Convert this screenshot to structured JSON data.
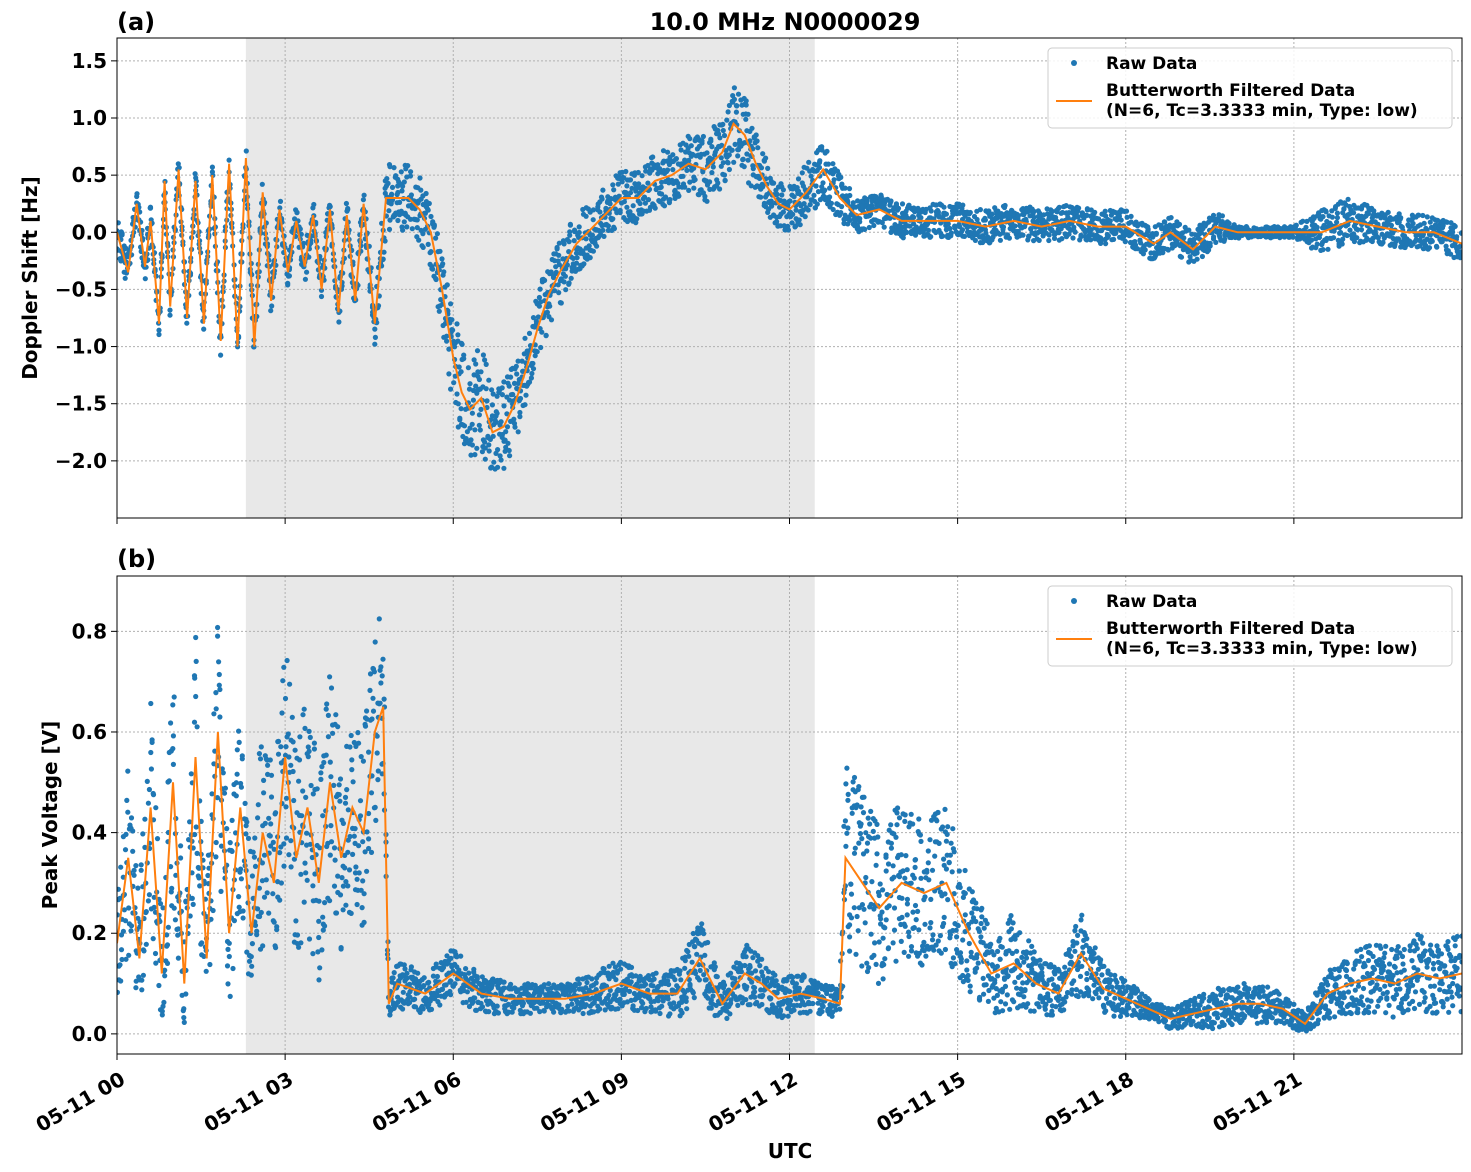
{
  "figure": {
    "title": "10.0 MHz N0000029",
    "xlabel": "UTC",
    "colors": {
      "raw": "#1f77b4",
      "filtered": "#ff7f0e",
      "shade": "#e8e8e8",
      "grid": "#b0b0b0"
    }
  },
  "chart_data": [
    {
      "type": "scatter",
      "panel_label": "(a)",
      "ylabel": "Doppler Shift [Hz]",
      "xlim_hours": [
        0,
        24
      ],
      "ylim": [
        -2.5,
        1.7
      ],
      "y_ticks": [
        1.5,
        1.0,
        0.5,
        0.0,
        -0.5,
        -1.0,
        -1.5,
        -2.0
      ],
      "y_tick_labels": [
        "1.5",
        "1.0",
        "0.5",
        "0.0",
        "−0.5",
        "−1.0",
        "−1.5",
        "−2.0"
      ],
      "x_tick_hours": [
        0,
        3,
        6,
        9,
        12,
        15,
        18,
        21
      ],
      "x_tick_labels": [],
      "shaded_span_hours": [
        2.3,
        12.45
      ],
      "grid": true,
      "legend_position": "top-right",
      "legend": [
        "Raw Data",
        "Butterworth Filtered Data",
        "(N=6, Tc=3.3333 min, Type: low)"
      ],
      "series": [
        {
          "name": "Butterworth Filtered Data",
          "kind": "line",
          "x": [
            0,
            0.2,
            0.35,
            0.5,
            0.6,
            0.75,
            0.85,
            0.95,
            1.1,
            1.25,
            1.4,
            1.55,
            1.7,
            1.85,
            2.0,
            2.15,
            2.3,
            2.45,
            2.6,
            2.75,
            2.9,
            3.05,
            3.2,
            3.35,
            3.5,
            3.65,
            3.8,
            3.95,
            4.1,
            4.25,
            4.4,
            4.6,
            4.8,
            5.0,
            5.2,
            5.4,
            5.6,
            5.8,
            6.0,
            6.15,
            6.3,
            6.5,
            6.7,
            6.9,
            7.1,
            7.3,
            7.5,
            7.7,
            7.9,
            8.2,
            8.5,
            8.8,
            9.0,
            9.3,
            9.6,
            9.9,
            10.2,
            10.5,
            10.8,
            11.0,
            11.2,
            11.4,
            11.6,
            11.8,
            12.0,
            12.3,
            12.6,
            12.9,
            13.2,
            13.6,
            14.0,
            14.5,
            15.0,
            15.5,
            16.0,
            16.5,
            17.0,
            17.5,
            18.0,
            18.5,
            18.8,
            19.2,
            19.6,
            20.0,
            20.5,
            21.0,
            21.5,
            22.0,
            22.5,
            23.0,
            23.5,
            24.0
          ],
          "y": [
            0.0,
            -0.35,
            0.25,
            -0.3,
            0.1,
            -0.8,
            0.45,
            -0.65,
            0.55,
            -0.75,
            0.45,
            -0.8,
            0.5,
            -0.95,
            0.6,
            -1.0,
            0.65,
            -1.0,
            0.35,
            -0.6,
            0.2,
            -0.35,
            0.1,
            -0.3,
            0.15,
            -0.5,
            0.2,
            -0.7,
            0.15,
            -0.6,
            0.25,
            -0.8,
            0.3,
            0.3,
            0.3,
            0.2,
            0.0,
            -0.5,
            -1.1,
            -1.4,
            -1.55,
            -1.45,
            -1.75,
            -1.7,
            -1.5,
            -1.2,
            -0.85,
            -0.55,
            -0.35,
            -0.1,
            0.05,
            0.2,
            0.3,
            0.3,
            0.45,
            0.5,
            0.6,
            0.55,
            0.7,
            0.95,
            0.85,
            0.6,
            0.4,
            0.25,
            0.2,
            0.35,
            0.55,
            0.3,
            0.15,
            0.2,
            0.1,
            0.1,
            0.1,
            0.05,
            0.1,
            0.05,
            0.1,
            0.05,
            0.05,
            -0.1,
            0.0,
            -0.15,
            0.05,
            0.0,
            0.0,
            0.0,
            0.0,
            0.1,
            0.05,
            0.0,
            0.0,
            -0.1
          ]
        },
        {
          "name": "Raw Data",
          "kind": "scatter",
          "x": [
            0,
            0.2,
            0.35,
            0.5,
            0.6,
            0.75,
            0.85,
            0.95,
            1.1,
            1.25,
            1.4,
            1.55,
            1.7,
            1.85,
            2.0,
            2.15,
            2.3,
            2.45,
            2.6,
            2.75,
            2.9,
            3.05,
            3.2,
            3.35,
            3.5,
            3.65,
            3.8,
            3.95,
            4.1,
            4.25,
            4.4,
            4.6,
            4.8,
            5.0,
            5.2,
            5.4,
            5.6,
            5.8,
            6.0,
            6.15,
            6.3,
            6.5,
            6.7,
            6.9,
            7.1,
            7.3,
            7.5,
            7.7,
            7.9,
            8.2,
            8.5,
            8.8,
            9.0,
            9.3,
            9.6,
            9.9,
            10.2,
            10.5,
            10.8,
            11.0,
            11.2,
            11.4,
            11.6,
            11.8,
            12.0,
            12.3,
            12.6,
            12.9,
            13.2,
            13.6,
            14.0,
            14.5,
            15.0,
            15.5,
            16.0,
            16.5,
            17.0,
            17.5,
            18.0,
            18.5,
            18.8,
            19.2,
            19.6,
            20.0,
            20.5,
            21.0,
            21.5,
            22.0,
            22.5,
            23.0,
            23.5,
            24.0
          ],
          "y": [
            0.0,
            -0.35,
            0.25,
            -0.3,
            0.1,
            -0.8,
            0.45,
            -0.65,
            0.55,
            -0.75,
            0.45,
            -0.8,
            0.5,
            -0.95,
            0.6,
            -1.0,
            0.65,
            -1.0,
            0.35,
            -0.6,
            0.2,
            -0.35,
            0.1,
            -0.3,
            0.15,
            -0.5,
            0.2,
            -0.7,
            0.15,
            -0.6,
            0.25,
            -0.8,
            0.3,
            0.3,
            0.3,
            0.2,
            0.0,
            -0.5,
            -1.1,
            -1.4,
            -1.55,
            -1.45,
            -1.75,
            -1.7,
            -1.5,
            -1.2,
            -0.85,
            -0.55,
            -0.35,
            -0.1,
            0.05,
            0.2,
            0.3,
            0.3,
            0.45,
            0.5,
            0.6,
            0.55,
            0.7,
            0.95,
            0.85,
            0.6,
            0.4,
            0.25,
            0.2,
            0.35,
            0.55,
            0.3,
            0.15,
            0.2,
            0.1,
            0.1,
            0.1,
            0.05,
            0.1,
            0.05,
            0.1,
            0.05,
            0.05,
            -0.1,
            0.0,
            -0.15,
            0.05,
            0.0,
            0.0,
            0.0,
            0.0,
            0.1,
            0.05,
            0.0,
            0.0,
            -0.1
          ],
          "spread_hz": [
            0.15,
            0.15,
            0.15,
            0.15,
            0.15,
            0.15,
            0.15,
            0.15,
            0.15,
            0.15,
            0.15,
            0.15,
            0.15,
            0.15,
            0.15,
            0.15,
            0.15,
            0.15,
            0.15,
            0.15,
            0.15,
            0.15,
            0.15,
            0.15,
            0.15,
            0.15,
            0.15,
            0.15,
            0.15,
            0.15,
            0.15,
            0.2,
            0.3,
            0.3,
            0.3,
            0.3,
            0.3,
            0.35,
            0.45,
            0.45,
            0.45,
            0.45,
            0.4,
            0.4,
            0.35,
            0.3,
            0.3,
            0.3,
            0.3,
            0.25,
            0.25,
            0.25,
            0.25,
            0.25,
            0.25,
            0.25,
            0.25,
            0.3,
            0.3,
            0.35,
            0.35,
            0.3,
            0.25,
            0.2,
            0.2,
            0.25,
            0.25,
            0.2,
            0.15,
            0.15,
            0.15,
            0.15,
            0.15,
            0.15,
            0.15,
            0.15,
            0.15,
            0.15,
            0.15,
            0.15,
            0.15,
            0.15,
            0.15,
            0.05,
            0.05,
            0.05,
            0.2,
            0.2,
            0.15,
            0.15,
            0.15,
            0.15
          ]
        }
      ]
    },
    {
      "type": "scatter",
      "panel_label": "(b)",
      "ylabel": "Peak Voltage [V]",
      "xlim_hours": [
        0,
        24
      ],
      "ylim": [
        -0.04,
        0.91
      ],
      "y_ticks": [
        0.8,
        0.6,
        0.4,
        0.2,
        0.0
      ],
      "y_tick_labels": [
        "0.8",
        "0.6",
        "0.4",
        "0.2",
        "0.0"
      ],
      "x_tick_hours": [
        0,
        3,
        6,
        9,
        12,
        15,
        18,
        21
      ],
      "x_tick_labels": [
        "05-11 00",
        "05-11 03",
        "05-11 06",
        "05-11 09",
        "05-11 12",
        "05-11 15",
        "05-11 18",
        "05-11 21"
      ],
      "shaded_span_hours": [
        2.3,
        12.45
      ],
      "grid": true,
      "legend_position": "top-right",
      "legend": [
        "Raw Data",
        "Butterworth Filtered Data",
        "(N=6, Tc=3.3333 min, Type: low)"
      ],
      "series": [
        {
          "name": "Butterworth Filtered Data",
          "kind": "line",
          "x": [
            0,
            0.2,
            0.4,
            0.6,
            0.8,
            1.0,
            1.2,
            1.4,
            1.6,
            1.8,
            2.0,
            2.2,
            2.4,
            2.6,
            2.8,
            3.0,
            3.2,
            3.4,
            3.6,
            3.8,
            4.0,
            4.2,
            4.4,
            4.6,
            4.75,
            4.85,
            5.0,
            5.5,
            6.0,
            6.5,
            7.0,
            7.5,
            8.0,
            8.5,
            9.0,
            9.5,
            10.0,
            10.4,
            10.8,
            11.2,
            11.5,
            11.8,
            12.2,
            12.6,
            12.9,
            13.0,
            13.3,
            13.6,
            14.0,
            14.4,
            14.8,
            15.2,
            15.6,
            16.0,
            16.4,
            16.8,
            17.2,
            17.6,
            18.0,
            18.4,
            18.8,
            19.2,
            19.6,
            20.0,
            20.4,
            20.8,
            21.2,
            21.6,
            22.0,
            22.4,
            22.8,
            23.2,
            23.6,
            24.0
          ],
          "y": [
            0.18,
            0.35,
            0.15,
            0.45,
            0.12,
            0.5,
            0.1,
            0.55,
            0.15,
            0.6,
            0.2,
            0.45,
            0.2,
            0.4,
            0.3,
            0.55,
            0.35,
            0.45,
            0.3,
            0.5,
            0.35,
            0.45,
            0.4,
            0.6,
            0.65,
            0.06,
            0.1,
            0.08,
            0.12,
            0.08,
            0.07,
            0.07,
            0.07,
            0.08,
            0.1,
            0.08,
            0.08,
            0.15,
            0.06,
            0.12,
            0.1,
            0.07,
            0.08,
            0.07,
            0.06,
            0.35,
            0.3,
            0.25,
            0.3,
            0.28,
            0.3,
            0.2,
            0.12,
            0.14,
            0.1,
            0.08,
            0.16,
            0.09,
            0.07,
            0.05,
            0.03,
            0.04,
            0.05,
            0.06,
            0.06,
            0.05,
            0.02,
            0.08,
            0.1,
            0.11,
            0.1,
            0.12,
            0.11,
            0.12
          ]
        },
        {
          "name": "Raw Data",
          "kind": "scatter",
          "x": [
            0,
            0.2,
            0.4,
            0.6,
            0.8,
            1.0,
            1.2,
            1.4,
            1.6,
            1.8,
            2.0,
            2.2,
            2.4,
            2.6,
            2.8,
            3.0,
            3.2,
            3.4,
            3.6,
            3.8,
            4.0,
            4.2,
            4.4,
            4.6,
            4.75,
            4.85,
            5.0,
            5.5,
            6.0,
            6.5,
            7.0,
            7.5,
            8.0,
            8.5,
            9.0,
            9.5,
            10.0,
            10.4,
            10.8,
            11.2,
            11.5,
            11.8,
            12.2,
            12.6,
            12.9,
            13.0,
            13.3,
            13.6,
            14.0,
            14.4,
            14.8,
            15.2,
            15.6,
            16.0,
            16.4,
            16.8,
            17.2,
            17.6,
            18.0,
            18.4,
            18.8,
            19.2,
            19.6,
            20.0,
            20.4,
            20.8,
            21.2,
            21.6,
            22.0,
            22.4,
            22.8,
            23.2,
            23.6,
            24.0
          ],
          "y": [
            0.18,
            0.35,
            0.15,
            0.45,
            0.12,
            0.5,
            0.1,
            0.55,
            0.15,
            0.6,
            0.2,
            0.45,
            0.2,
            0.4,
            0.3,
            0.55,
            0.35,
            0.45,
            0.3,
            0.5,
            0.35,
            0.45,
            0.4,
            0.6,
            0.65,
            0.06,
            0.1,
            0.08,
            0.12,
            0.08,
            0.07,
            0.07,
            0.07,
            0.08,
            0.1,
            0.08,
            0.08,
            0.15,
            0.06,
            0.12,
            0.1,
            0.07,
            0.08,
            0.07,
            0.06,
            0.35,
            0.3,
            0.25,
            0.3,
            0.28,
            0.3,
            0.2,
            0.12,
            0.14,
            0.1,
            0.08,
            0.16,
            0.09,
            0.07,
            0.05,
            0.03,
            0.04,
            0.05,
            0.06,
            0.06,
            0.05,
            0.02,
            0.08,
            0.1,
            0.11,
            0.1,
            0.12,
            0.11,
            0.12
          ],
          "spread_v": [
            0.15,
            0.2,
            0.12,
            0.25,
            0.1,
            0.25,
            0.1,
            0.25,
            0.12,
            0.25,
            0.15,
            0.25,
            0.15,
            0.25,
            0.2,
            0.25,
            0.2,
            0.25,
            0.2,
            0.25,
            0.2,
            0.2,
            0.2,
            0.2,
            0.2,
            0.03,
            0.05,
            0.04,
            0.05,
            0.04,
            0.03,
            0.03,
            0.03,
            0.04,
            0.05,
            0.04,
            0.05,
            0.08,
            0.04,
            0.06,
            0.05,
            0.04,
            0.04,
            0.03,
            0.03,
            0.2,
            0.18,
            0.16,
            0.16,
            0.15,
            0.15,
            0.12,
            0.08,
            0.1,
            0.06,
            0.05,
            0.08,
            0.05,
            0.04,
            0.02,
            0.02,
            0.03,
            0.04,
            0.04,
            0.04,
            0.03,
            0.02,
            0.05,
            0.06,
            0.07,
            0.07,
            0.08,
            0.07,
            0.08
          ]
        }
      ]
    }
  ]
}
